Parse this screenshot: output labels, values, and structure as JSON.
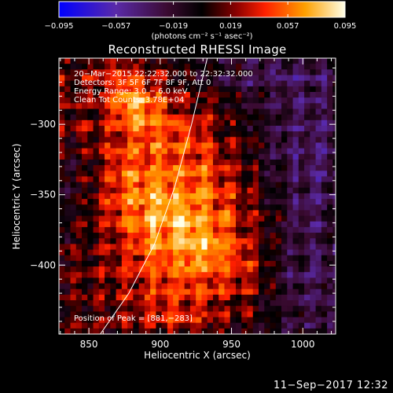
{
  "chart_data": {
    "type": "heatmap",
    "title": "Reconstructed RHESSI Image",
    "xlabel": "Heliocentric X (arcsec)",
    "ylabel": "Heliocentric Y (arcsec)",
    "xlim": [
      829,
      1023
    ],
    "ylim": [
      -449,
      -253
    ],
    "x_ticks": [
      850,
      900,
      950,
      1000
    ],
    "y_ticks": [
      -300,
      -350,
      -400
    ],
    "x_tick_labels": [
      "850",
      "900",
      "950",
      "1000"
    ],
    "y_tick_labels": [
      "−300",
      "−350",
      "−400"
    ],
    "colorbar": {
      "min": -0.095,
      "max": 0.095,
      "ticks": [
        -0.095,
        -0.057,
        -0.019,
        0.019,
        0.057,
        0.095
      ],
      "tick_labels": [
        "−0.095",
        "−0.057",
        "−0.019",
        "0.019",
        "0.057",
        "0.095"
      ],
      "units_label": "(photons cm⁻² s⁻¹ asec⁻²)"
    },
    "annotations": [
      "20−Mar−2015 22:22:32.000 to 22:32:32.000",
      "Detectors: 3F 5F 6F 7F 8F 9F, Att 0",
      "Energy Range: 3.0 − 6.0 keV",
      "Clean    Tot Counts: 3.78E+04"
    ],
    "peak_label": "Position of Peak = [881,−283]",
    "peak": [
      881,
      -283
    ],
    "limb_curve": [
      [
        858,
        -449
      ],
      [
        878,
        -420
      ],
      [
        896,
        -385
      ],
      [
        910,
        -345
      ],
      [
        922,
        -300
      ],
      [
        933,
        -253
      ]
    ],
    "pixel_size": 4,
    "background_level": 0.01
  },
  "footer": {
    "timestamp": "11−Sep−2017 12:32"
  }
}
